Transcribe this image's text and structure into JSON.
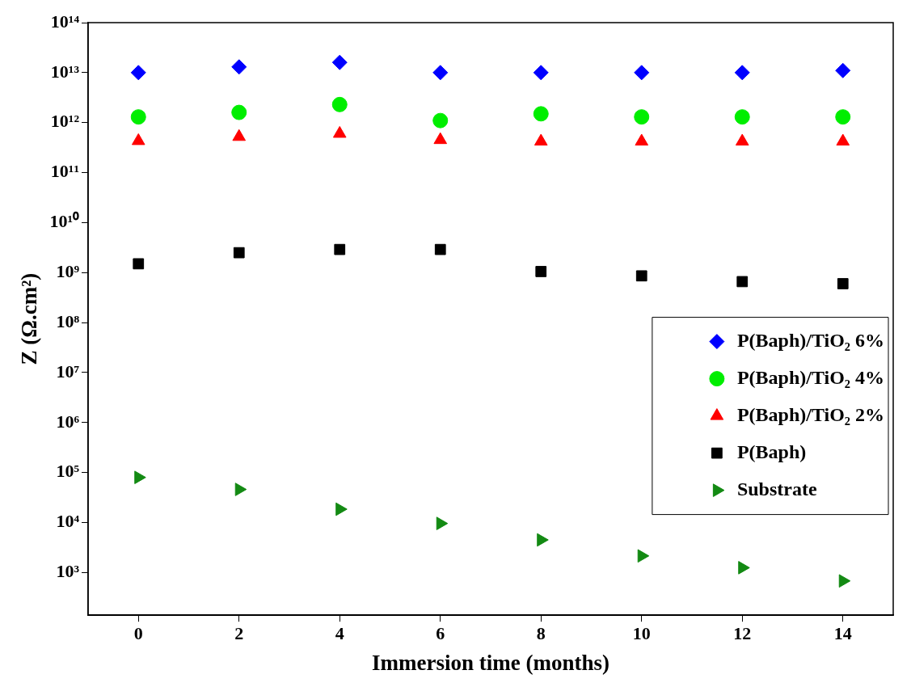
{
  "chart_data": {
    "type": "scatter",
    "xlabel": "Immersion time (months)",
    "ylabel": "Z (Ω.cm²)",
    "x": [
      0,
      2,
      4,
      6,
      8,
      10,
      12,
      14
    ],
    "xlim": [
      -1,
      15
    ],
    "xticks": [
      0,
      2,
      4,
      6,
      8,
      10,
      12,
      14
    ],
    "ylim": [
      140,
      100000000000000.0
    ],
    "yticks": [
      {
        "value": 1000.0,
        "label": "10³"
      },
      {
        "value": 10000.0,
        "label": "10⁴"
      },
      {
        "value": 100000.0,
        "label": "10⁵"
      },
      {
        "value": 1000000.0,
        "label": "10⁶"
      },
      {
        "value": 10000000.0,
        "label": "10⁷"
      },
      {
        "value": 100000000.0,
        "label": "10⁸"
      },
      {
        "value": 1000000000.0,
        "label": "10⁹"
      },
      {
        "value": 10000000000.0,
        "label": "10¹⁰"
      },
      {
        "value": 100000000000.0,
        "label": "10¹¹"
      },
      {
        "value": 1000000000000.0,
        "label": "10¹²"
      },
      {
        "value": 10000000000000.0,
        "label": "10¹³"
      },
      {
        "value": 100000000000000.0,
        "label": "10¹⁴"
      }
    ],
    "log": "y",
    "grid": false,
    "legend": "right",
    "series": [
      {
        "name": "P(Baph)/TiO₂ 6%",
        "color": "#0000ff",
        "marker": "diamond",
        "values": [
          10000000000000.0,
          13000000000000.0,
          16000000000000.0,
          10000000000000.0,
          10000000000000.0,
          10000000000000.0,
          10000000000000.0,
          11000000000000.0
        ]
      },
      {
        "name": "P(Baph)/TiO₂ 4%",
        "color": "#00ee00",
        "marker": "circle",
        "values": [
          1300000000000.0,
          1600000000000.0,
          2300000000000.0,
          1100000000000.0,
          1500000000000.0,
          1300000000000.0,
          1300000000000.0,
          1300000000000.0
        ]
      },
      {
        "name": "P(Baph)/TiO₂ 2%",
        "color": "#ff0000",
        "marker": "triangle",
        "values": [
          430000000000.0,
          520000000000.0,
          600000000000.0,
          450000000000.0,
          420000000000.0,
          420000000000.0,
          420000000000.0,
          420000000000.0
        ]
      },
      {
        "name": "P(Baph)",
        "color": "#000000",
        "marker": "square",
        "values": [
          1500000000.0,
          2500000000.0,
          2900000000.0,
          2900000000.0,
          1050000000.0,
          860000000.0,
          660000000.0,
          600000000.0
        ]
      },
      {
        "name": "Substrate",
        "color": "#138a13",
        "marker": "triangle-right",
        "values": [
          80000.0,
          46000.0,
          18500.0,
          9600.0,
          4500.0,
          2150.0,
          1250.0,
          680.0
        ]
      }
    ]
  }
}
